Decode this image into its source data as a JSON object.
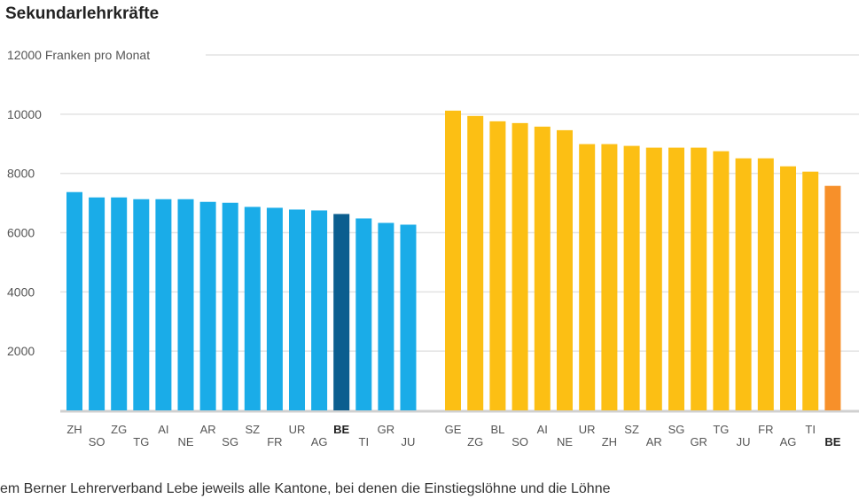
{
  "chart_data": {
    "type": "bar",
    "title": "Sekundarlehrkräfte",
    "ylabel": "Franken pro Monat",
    "ylim": [
      0,
      12000
    ],
    "yticks": [
      2000,
      4000,
      6000,
      8000,
      10000,
      12000
    ],
    "grid": true,
    "highlight": "BE",
    "groups": [
      {
        "color": "#1aace8",
        "highlight_color": "#0b5e8f",
        "categories": [
          "ZH",
          "SO",
          "ZG",
          "TG",
          "AI",
          "NE",
          "AR",
          "SG",
          "SZ",
          "FR",
          "UR",
          "AG",
          "BE",
          "TI",
          "GR",
          "JU"
        ],
        "values": [
          7370,
          7190,
          7190,
          7130,
          7130,
          7130,
          7040,
          7010,
          6870,
          6840,
          6780,
          6750,
          6630,
          6480,
          6330,
          6270
        ]
      },
      {
        "color": "#fcbf14",
        "highlight_color": "#f7902a",
        "categories": [
          "GE",
          "ZG",
          "BL",
          "SO",
          "AI",
          "NE",
          "UR",
          "ZH",
          "SZ",
          "AR",
          "SG",
          "GR",
          "TG",
          "JU",
          "FR",
          "AG",
          "TI",
          "BE"
        ],
        "values": [
          10120,
          9940,
          9760,
          9700,
          9580,
          9460,
          8990,
          8990,
          8930,
          8870,
          8870,
          8870,
          8750,
          8510,
          8510,
          8240,
          8060,
          7580
        ]
      }
    ]
  },
  "footnote": "em Berner Lehrerverband Lebe jeweils alle Kantone, bei denen die Einstiegslöhne und die Löhne"
}
